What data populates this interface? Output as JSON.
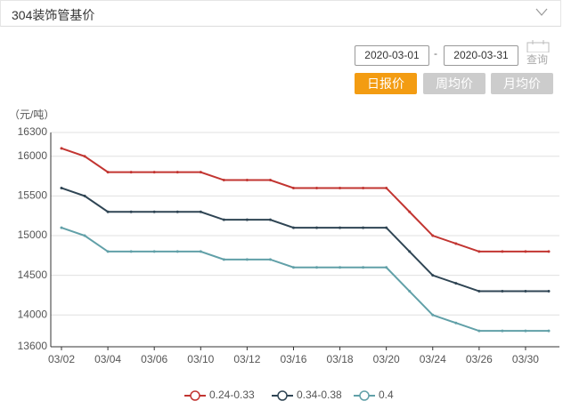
{
  "header": {
    "title": "304装饰管基价"
  },
  "controls": {
    "start_date": "2020-03-01",
    "separator": "-",
    "end_date": "2020-03-31",
    "query": "查询",
    "tabs": [
      "日报价",
      "周均价",
      "月均价"
    ]
  },
  "chart_data": {
    "type": "line",
    "y_label": "（元/吨）",
    "categories": [
      "03/02",
      null,
      "03/04",
      null,
      "03/06",
      null,
      "03/10",
      null,
      "03/12",
      null,
      "03/16",
      null,
      "03/18",
      null,
      "03/20",
      null,
      "03/24",
      null,
      "03/26",
      null,
      "03/30",
      null
    ],
    "series": [
      {
        "name": "0.24-0.33",
        "color": "#c23531",
        "values": [
          16100,
          16000,
          15800,
          15800,
          15800,
          15800,
          15800,
          15700,
          15700,
          15700,
          15600,
          15600,
          15600,
          15600,
          15600,
          15300,
          15000,
          14900,
          14800,
          14800,
          14800,
          14800
        ]
      },
      {
        "name": "0.34-0.38",
        "color": "#2f4554",
        "values": [
          15600,
          15500,
          15300,
          15300,
          15300,
          15300,
          15300,
          15200,
          15200,
          15200,
          15100,
          15100,
          15100,
          15100,
          15100,
          14800,
          14500,
          14400,
          14300,
          14300,
          14300,
          14300
        ]
      },
      {
        "name": "0.4",
        "color": "#61a0a8",
        "values": [
          15100,
          15000,
          14800,
          14800,
          14800,
          14800,
          14800,
          14700,
          14700,
          14700,
          14600,
          14600,
          14600,
          14600,
          14600,
          14300,
          14000,
          13900,
          13800,
          13800,
          13800,
          13800
        ]
      }
    ],
    "ylim": [
      13600,
      16300
    ],
    "yticks": [
      13600,
      14000,
      14500,
      15000,
      15500,
      16000,
      16300
    ],
    "grid": true
  }
}
